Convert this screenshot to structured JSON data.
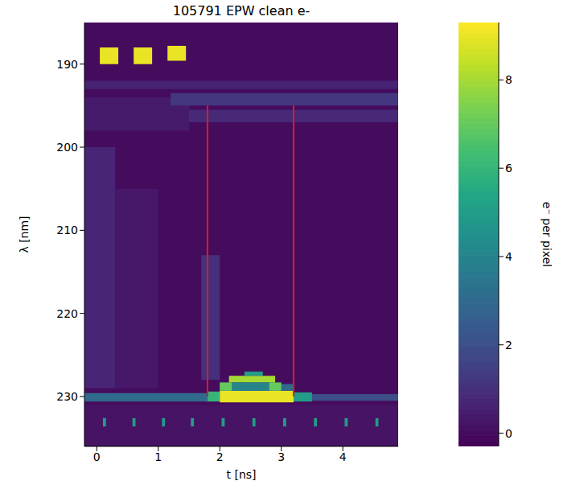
{
  "chart_data": {
    "type": "heatmap",
    "title": "105791 EPW clean e-",
    "x_label": "t [ns]",
    "y_label": "λ [nm]",
    "xlim": [
      -0.2,
      4.9
    ],
    "ylim": [
      185,
      236
    ],
    "xticks": [
      0,
      1,
      2,
      3,
      4
    ],
    "yticks": [
      190,
      200,
      210,
      220,
      230
    ],
    "grid": false,
    "background": 0,
    "cells": [
      [
        -0.2,
        4.9,
        192,
        193,
        0.6
      ],
      [
        -0.2,
        1.5,
        194,
        198,
        0.4
      ],
      [
        1.2,
        4.9,
        193.5,
        195,
        1.2
      ],
      [
        1.5,
        4.9,
        195.5,
        197,
        0.8
      ],
      [
        0.05,
        0.35,
        188,
        190,
        9
      ],
      [
        0.6,
        0.9,
        188,
        190,
        9
      ],
      [
        1.15,
        1.45,
        187.8,
        189.6,
        9
      ],
      [
        -0.2,
        0.3,
        200,
        229,
        0.7
      ],
      [
        0.3,
        1.0,
        205,
        229,
        0.3
      ],
      [
        1.7,
        2.0,
        213,
        228,
        1.0
      ],
      [
        -0.2,
        4.9,
        231,
        236,
        0.2
      ],
      [
        -0.2,
        1.8,
        229.6,
        230.6,
        3
      ],
      [
        1.8,
        2.0,
        229.4,
        230.6,
        6
      ],
      [
        2.0,
        3.2,
        229.3,
        230.7,
        9
      ],
      [
        3.2,
        3.5,
        229.5,
        230.6,
        5
      ],
      [
        3.5,
        4.9,
        229.7,
        230.5,
        2
      ],
      [
        2.0,
        3.2,
        228.5,
        229.3,
        3
      ],
      [
        2.15,
        2.9,
        227.5,
        228.3,
        8
      ],
      [
        2.0,
        2.2,
        228.3,
        229.3,
        7
      ],
      [
        2.8,
        3.0,
        228.3,
        229.3,
        7
      ],
      [
        2.2,
        2.8,
        228.3,
        229.3,
        4
      ],
      [
        2.4,
        2.7,
        227,
        227.5,
        5
      ],
      [
        0.1,
        0.15,
        232.6,
        233.6,
        5
      ],
      [
        0.58,
        0.63,
        232.6,
        233.6,
        5
      ],
      [
        1.06,
        1.11,
        232.6,
        233.6,
        5
      ],
      [
        1.53,
        1.58,
        232.6,
        233.6,
        5
      ],
      [
        2.03,
        2.08,
        232.6,
        233.6,
        5
      ],
      [
        2.53,
        2.58,
        232.6,
        233.6,
        5
      ],
      [
        3.03,
        3.08,
        232.6,
        233.6,
        5
      ],
      [
        3.53,
        3.58,
        232.6,
        233.6,
        5
      ],
      [
        4.03,
        4.08,
        232.6,
        233.6,
        5
      ],
      [
        4.53,
        4.58,
        232.6,
        233.6,
        5
      ]
    ],
    "colorbar": {
      "label": "e⁻ per pixel",
      "range": [
        -0.3,
        9.3
      ],
      "ticks": [
        0,
        2,
        4,
        6,
        8
      ]
    },
    "lines": [
      {
        "x": 1.8,
        "y": [
          195,
          230
        ],
        "color": "#e41a1c"
      },
      {
        "x": 3.2,
        "y": [
          195,
          230
        ],
        "color": "#e41a1c"
      }
    ]
  }
}
